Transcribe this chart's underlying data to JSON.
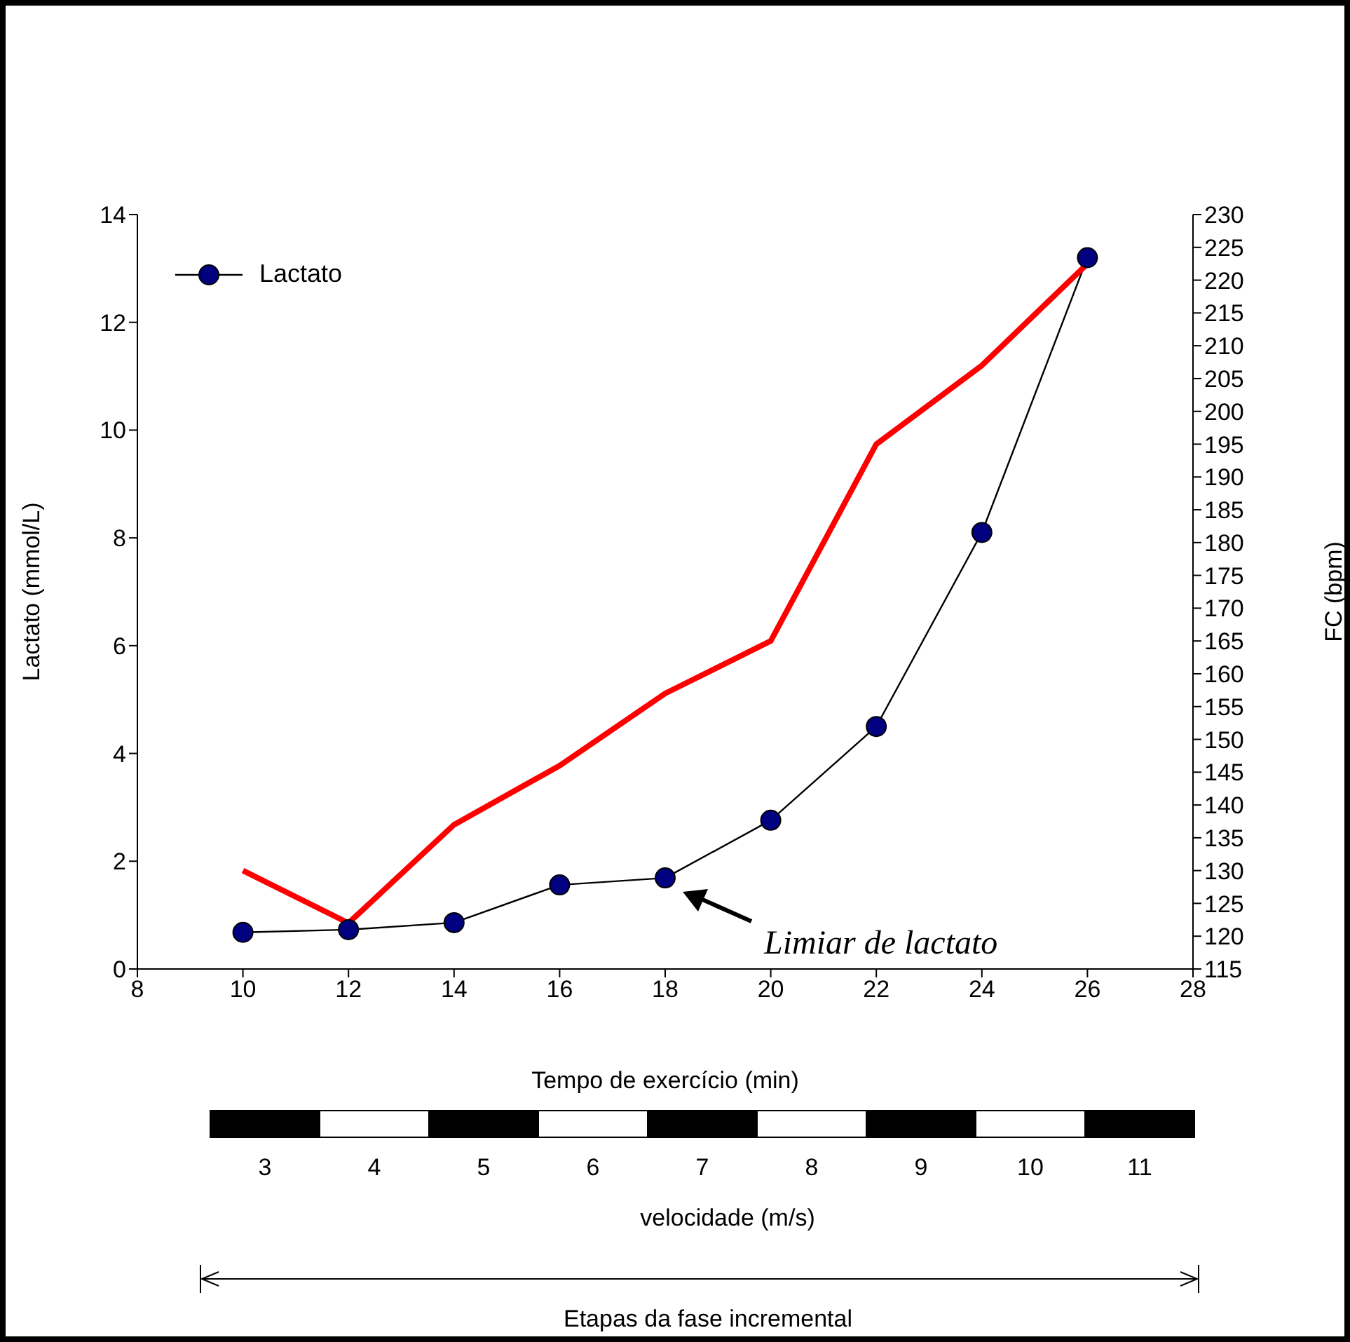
{
  "chart_data": {
    "type": "line",
    "x": [
      10,
      12,
      14,
      16,
      18,
      20,
      22,
      24,
      26
    ],
    "xlabel": "Tempo de exercício (min)",
    "ylabel": "Lactato (mmol/L)",
    "y2label": "FC (bpm)",
    "series": [
      {
        "name": "Lactato",
        "color": "#000080",
        "marker": "circle",
        "values": [
          0.68,
          0.73,
          0.86,
          1.56,
          1.69,
          2.76,
          4.5,
          8.1,
          13.2
        ]
      },
      {
        "color": "#ff0000",
        "axis": "y2",
        "marker": "none",
        "values": [
          130,
          122,
          137,
          146,
          157,
          165,
          195,
          207,
          222.5
        ]
      }
    ],
    "xlim": [
      8,
      28
    ],
    "xticks": [
      8,
      10,
      12,
      14,
      16,
      18,
      20,
      22,
      24,
      26,
      28
    ],
    "ylim": [
      0,
      14
    ],
    "yticks": [
      0,
      2,
      4,
      6,
      8,
      10,
      12,
      14
    ],
    "y2lim": [
      115,
      230
    ],
    "y2ticks": [
      115,
      120,
      125,
      130,
      135,
      140,
      145,
      150,
      155,
      160,
      165,
      170,
      175,
      180,
      185,
      190,
      195,
      200,
      205,
      210,
      215,
      220,
      225,
      230
    ],
    "annotations": [
      "Limiar de lactato",
      "3",
      "4",
      "5",
      "6",
      "7",
      "8",
      "9",
      "10",
      "11",
      "velocidade (m/s)",
      "Etapas da fase incremental"
    ],
    "legend": "top left",
    "grid": false
  }
}
